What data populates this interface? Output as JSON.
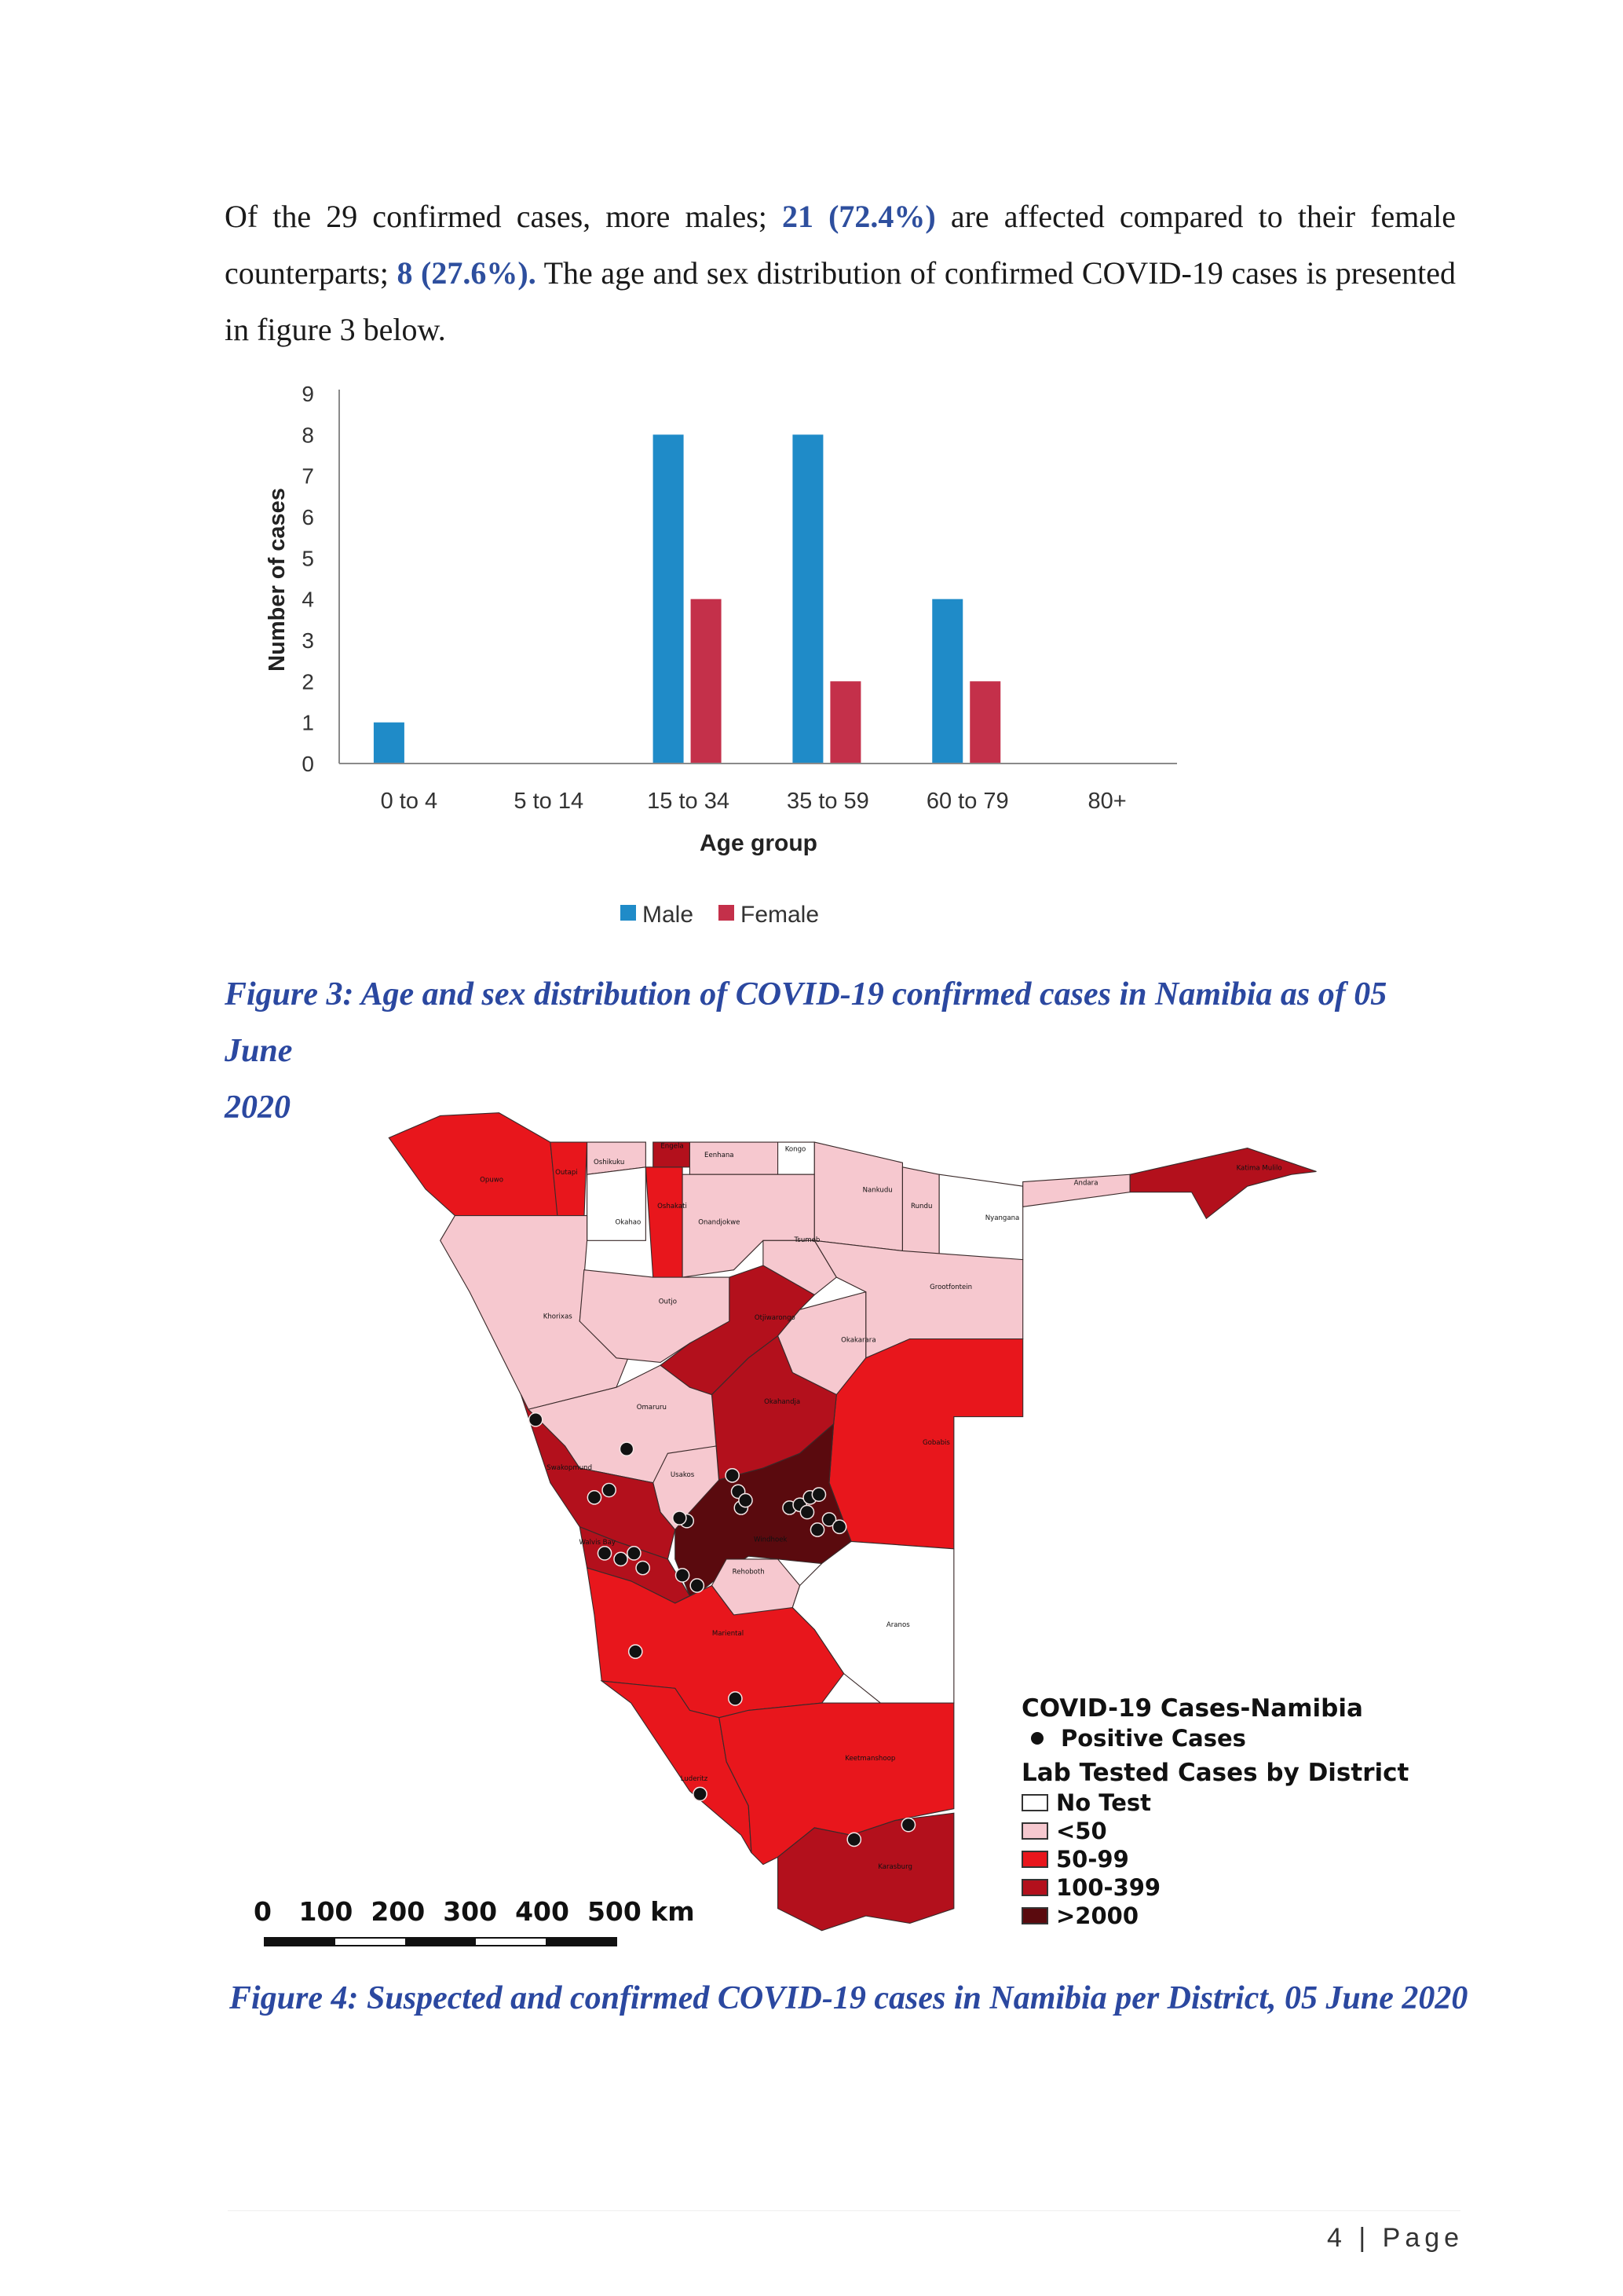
{
  "paragraph": {
    "part1": "Of the 29 confirmed cases, more males; ",
    "male_stat": "21 (72.4%)",
    "part2": " are affected compared to their female counterparts; ",
    "female_stat": "8 (27.6%).",
    "part3": " The age and sex distribution of confirmed COVID-19 cases is presented in figure 3 below."
  },
  "chart_data": {
    "type": "bar",
    "title": "",
    "categories": [
      "0 to 4",
      "5 to 14",
      "15 to 34",
      "35 to 59",
      "60 to 79",
      "80+"
    ],
    "series": [
      {
        "name": "Male",
        "values": [
          1,
          0,
          8,
          8,
          4,
          0
        ],
        "color": "#1f8bc8"
      },
      {
        "name": "Female",
        "values": [
          0,
          0,
          4,
          2,
          2,
          0
        ],
        "color": "#c4304a"
      }
    ],
    "xlabel": "Age group",
    "ylabel": "Number of cases",
    "ylim": [
      0,
      9
    ],
    "yticks": [
      "0",
      "1",
      "2",
      "3",
      "4",
      "5",
      "6",
      "7",
      "8",
      "9"
    ],
    "legend_position": "bottom",
    "grid": false
  },
  "figure3_caption_line1": "Figure 3: Age and sex distribution of COVID-19 confirmed cases in Namibia as of 05 June",
  "figure3_caption_line2": "2020",
  "map": {
    "legend_title": "COVID-19 Cases-Namibia",
    "positive_label": "Positive Cases",
    "district_title": "Lab Tested Cases by District",
    "classes": [
      {
        "label": "No Test",
        "color": "#ffffff"
      },
      {
        "label": "<50",
        "color": "#f6c8cf"
      },
      {
        "label": "50-99",
        "color": "#e8161c"
      },
      {
        "label": "100-399",
        "color": "#b3101c"
      },
      {
        "label": ">2000",
        "color": "#5a0a0e"
      }
    ],
    "scale_labels": [
      "0",
      "100",
      "200",
      "300",
      "400",
      "500 km"
    ],
    "districts": [
      {
        "name": "Opuwo",
        "class": 2
      },
      {
        "name": "Outapi",
        "class": 2
      },
      {
        "name": "Oshikuku",
        "class": 1
      },
      {
        "name": "Okahao",
        "class": 0
      },
      {
        "name": "Oshakati",
        "class": 2
      },
      {
        "name": "Engela",
        "class": 3
      },
      {
        "name": "Eenhana",
        "class": 1
      },
      {
        "name": "Kongo",
        "class": 0
      },
      {
        "name": "Onandjokwe",
        "class": 1
      },
      {
        "name": "Nankudu",
        "class": 1
      },
      {
        "name": "Rundu",
        "class": 1
      },
      {
        "name": "Nyangana",
        "class": 0
      },
      {
        "name": "Andara",
        "class": 1
      },
      {
        "name": "Katima Mulilo",
        "class": 3
      },
      {
        "name": "Tsumeb",
        "class": 1
      },
      {
        "name": "Grootfontein",
        "class": 1
      },
      {
        "name": "Khorixas",
        "class": 1
      },
      {
        "name": "Outjo",
        "class": 1
      },
      {
        "name": "Otjiwarongo",
        "class": 3
      },
      {
        "name": "Okakarara",
        "class": 1
      },
      {
        "name": "Gobabis",
        "class": 2
      },
      {
        "name": "Okahandja",
        "class": 3
      },
      {
        "name": "Omaruru",
        "class": 1
      },
      {
        "name": "Usakos",
        "class": 1
      },
      {
        "name": "Swakopmund",
        "class": 3
      },
      {
        "name": "Windhoek",
        "class": 4
      },
      {
        "name": "Rehoboth",
        "class": 1
      },
      {
        "name": "Walvis Bay",
        "class": 3
      },
      {
        "name": "Aranos",
        "class": 0
      },
      {
        "name": "Mariental",
        "class": 2
      },
      {
        "name": "Luderitz",
        "class": 2
      },
      {
        "name": "Keetmanshoop",
        "class": 2
      },
      {
        "name": "Karasburg",
        "class": 3
      }
    ]
  },
  "figure4_caption": "Figure 4: Suspected and confirmed COVID-19 cases in Namibia per District, 05 June 2020",
  "footer": {
    "page_number": "4",
    "page_word": "| Page"
  }
}
